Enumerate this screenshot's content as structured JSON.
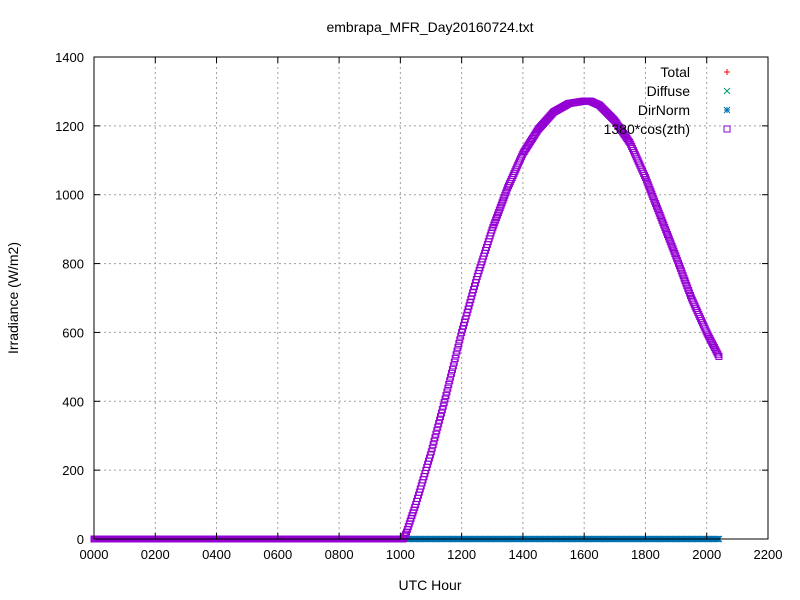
{
  "chart_data": {
    "type": "scatter",
    "title": "embrapa_MFR_Day20160724.txt",
    "xlabel": "UTC Hour",
    "ylabel": "Irradiance (W/m2)",
    "xlim": [
      0,
      2200
    ],
    "ylim": [
      0,
      1400
    ],
    "x_ticks": [
      "0000",
      "0200",
      "0400",
      "0600",
      "0800",
      "1000",
      "1200",
      "1400",
      "1600",
      "1800",
      "2000",
      "2200"
    ],
    "x_tick_values": [
      0,
      200,
      400,
      600,
      800,
      1000,
      1200,
      1400,
      1600,
      1800,
      2000,
      2200
    ],
    "y_ticks": [
      "0",
      "200",
      "400",
      "600",
      "800",
      "1000",
      "1200",
      "1400"
    ],
    "y_tick_values": [
      0,
      200,
      400,
      600,
      800,
      1000,
      1200,
      1400
    ],
    "grid": true,
    "legend_position": "top-right",
    "x_range_data": [
      0,
      2040
    ],
    "series": [
      {
        "name": "Total",
        "marker": "plus",
        "color": "#ff0000",
        "x": [],
        "y": []
      },
      {
        "name": "Diffuse",
        "marker": "cross",
        "color": "#009e73",
        "x": [],
        "y": []
      },
      {
        "name": "DirNorm",
        "marker": "star",
        "color": "#0072b2",
        "x": [
          1020,
          2040
        ],
        "y": [
          0,
          0
        ]
      },
      {
        "name": "1380*cos(zth)",
        "marker": "square",
        "color": "#9400d3",
        "x": [
          0,
          1010,
          1020,
          1050,
          1100,
          1150,
          1200,
          1250,
          1300,
          1350,
          1400,
          1450,
          1500,
          1550,
          1600,
          1620,
          1650,
          1700,
          1750,
          1800,
          1850,
          1900,
          1950,
          2000,
          2040
        ],
        "y": [
          0,
          0,
          20,
          100,
          250,
          420,
          600,
          760,
          900,
          1020,
          1120,
          1190,
          1240,
          1265,
          1272,
          1272,
          1260,
          1215,
          1150,
          1050,
          935,
          820,
          700,
          600,
          530
        ]
      }
    ]
  }
}
